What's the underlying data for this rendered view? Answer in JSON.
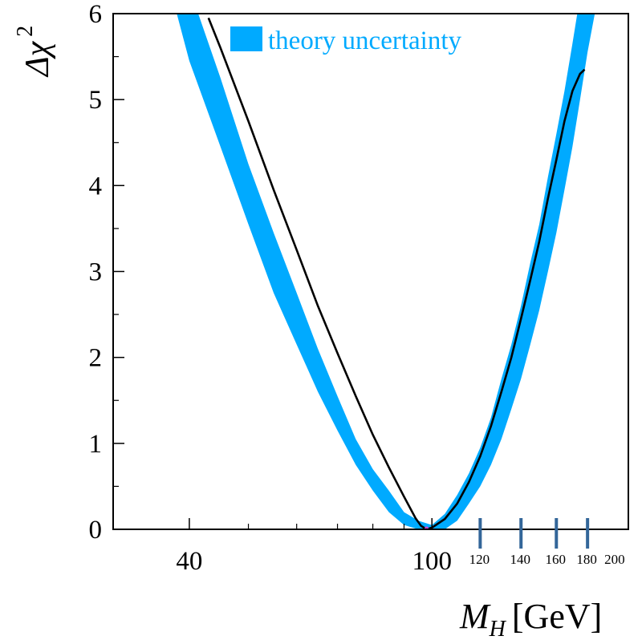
{
  "chart_data": {
    "type": "line",
    "title": "",
    "xlabel": {
      "main": "M",
      "sub": "H",
      "unit": "[GeV]"
    },
    "ylabel": {
      "main": "Δχ",
      "sup": "2"
    },
    "xscale": "log",
    "xlim": [
      30,
      210
    ],
    "ylim": [
      0,
      6
    ],
    "x_major_ticks": [
      40,
      100
    ],
    "x_small_ticks": [
      120,
      140,
      160,
      180,
      200
    ],
    "x_highlight_ticks": [
      120,
      140,
      160,
      180
    ],
    "y_major_ticks": [
      0,
      1,
      2,
      3,
      4,
      5,
      6
    ],
    "legend": {
      "label": "theory uncertainty",
      "position": "top"
    },
    "colors": {
      "band": "#00aaff",
      "curve": "#000000",
      "highlight_ticks": "#336699",
      "minimum_marker": "#cc44cc"
    },
    "series": [
      {
        "name": "theory uncertainty",
        "kind": "band",
        "x": [
          37.5,
          40,
          45,
          50,
          55,
          60,
          65,
          70,
          75,
          80,
          85,
          90,
          95,
          100,
          105,
          110,
          115,
          120,
          125,
          130,
          135,
          140,
          145,
          150,
          155,
          160,
          165,
          170,
          175,
          180,
          185
        ],
        "y_upper": [
          7.2,
          6.3,
          5.25,
          4.25,
          3.45,
          2.75,
          2.1,
          1.55,
          1.05,
          0.7,
          0.45,
          0.2,
          0.1,
          0.05,
          0.18,
          0.4,
          0.65,
          0.95,
          1.3,
          1.75,
          2.15,
          2.6,
          3.1,
          3.55,
          4.1,
          4.6,
          5.1,
          5.65,
          6.2,
          6.7,
          7.3
        ],
        "y_lower": [
          6.2,
          5.45,
          4.45,
          3.55,
          2.75,
          2.15,
          1.6,
          1.15,
          0.75,
          0.45,
          0.2,
          0.05,
          0.0,
          0.0,
          0.0,
          0.1,
          0.3,
          0.5,
          0.75,
          1.05,
          1.4,
          1.75,
          2.15,
          2.55,
          3.0,
          3.45,
          3.95,
          4.45,
          5.0,
          5.55,
          6.0
        ]
      },
      {
        "name": "",
        "kind": "line",
        "x": [
          43,
          45,
          50,
          55,
          60,
          65,
          70,
          75,
          80,
          85,
          90,
          94,
          96,
          98,
          100,
          105,
          110,
          115,
          120,
          125,
          130,
          135,
          140,
          145,
          150,
          155,
          160,
          165,
          170,
          175,
          178
        ],
        "y": [
          5.95,
          5.6,
          4.75,
          3.95,
          3.25,
          2.6,
          2.05,
          1.55,
          1.1,
          0.72,
          0.38,
          0.13,
          0.04,
          0.0,
          0.02,
          0.12,
          0.3,
          0.55,
          0.85,
          1.2,
          1.6,
          2.0,
          2.45,
          2.9,
          3.35,
          3.85,
          4.3,
          4.75,
          5.1,
          5.3,
          5.35
        ]
      }
    ],
    "minimum": {
      "x": 98,
      "y": 0
    }
  }
}
